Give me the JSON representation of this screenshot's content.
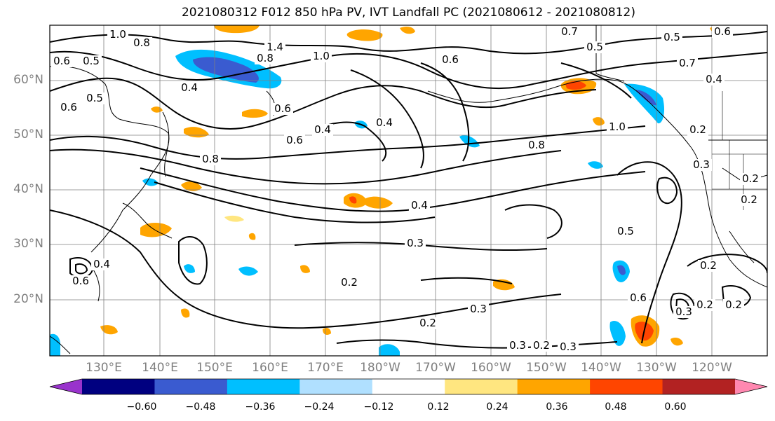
{
  "title": "2021080312 F012 850 hPa PV, IVT Landfall PC (2021080612 - 2021080812)",
  "lat_labels": [
    "60°N",
    "50°N",
    "40°N",
    "30°N",
    "20°N"
  ],
  "lon_labels": [
    "130°E",
    "140°E",
    "150°E",
    "160°E",
    "170°E",
    "180°W",
    "170°W",
    "160°W",
    "150°W",
    "140°W",
    "130°W",
    "120°W"
  ],
  "colorbar": {
    "ticks": [
      "−0.60",
      "−0.48",
      "−0.36",
      "−0.24",
      "−0.12",
      "0.12",
      "0.24",
      "0.36",
      "0.48",
      "0.60"
    ],
    "colors": [
      "#9933cc",
      "#000080",
      "#3a5bd0",
      "#00bfff",
      "#b0e0ff",
      "#ffffff",
      "#ffe680",
      "#ffa500",
      "#ff4500",
      "#b22222",
      "#ff88b0"
    ]
  },
  "contour_labels": [
    "1.0",
    "0.8",
    "0.6",
    "0.5",
    "1.4",
    "0.8",
    "1.0",
    "0.6",
    "0.7",
    "0.5",
    "0.5",
    "0.6",
    "0.7",
    "0.4",
    "0.6",
    "0.5",
    "0.4",
    "0.6",
    "0.4",
    "1.0",
    "0.8",
    "0.2",
    "0.4",
    "0.8",
    "0.6",
    "0.3",
    "0.5",
    "0.4",
    "0.2",
    "0.3",
    "0.2",
    "0.6",
    "0.2",
    "0.3",
    "0.2",
    "0.3",
    "0.2",
    "0.2",
    "0.4",
    "0.6",
    "0.2",
    "0.3",
    "0.3",
    "0.2"
  ],
  "colors": {
    "contour": "#000000",
    "grid": "#7f7f7f",
    "coast": "#000000"
  }
}
